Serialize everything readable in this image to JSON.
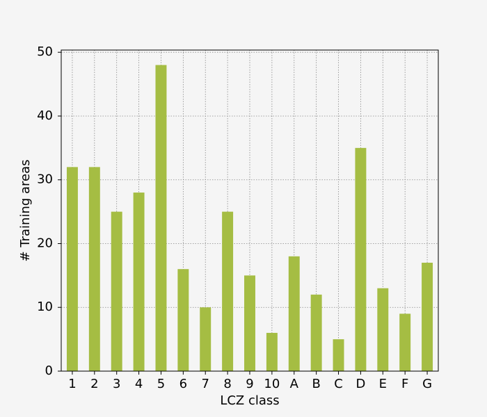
{
  "chart_data": {
    "type": "bar",
    "xlabel": "LCZ class",
    "ylabel": "# Training areas",
    "categories": [
      "1",
      "2",
      "3",
      "4",
      "5",
      "6",
      "7",
      "8",
      "9",
      "10",
      "A",
      "B",
      "C",
      "D",
      "E",
      "F",
      "G"
    ],
    "values": [
      32,
      32,
      25,
      28,
      48,
      16,
      10,
      25,
      15,
      6,
      18,
      12,
      5,
      35,
      13,
      9,
      17
    ],
    "color": "#a5bd43",
    "ylim": [
      0,
      50.35
    ],
    "yticks": [
      0,
      10,
      20,
      30,
      40,
      50
    ],
    "grid": true
  }
}
